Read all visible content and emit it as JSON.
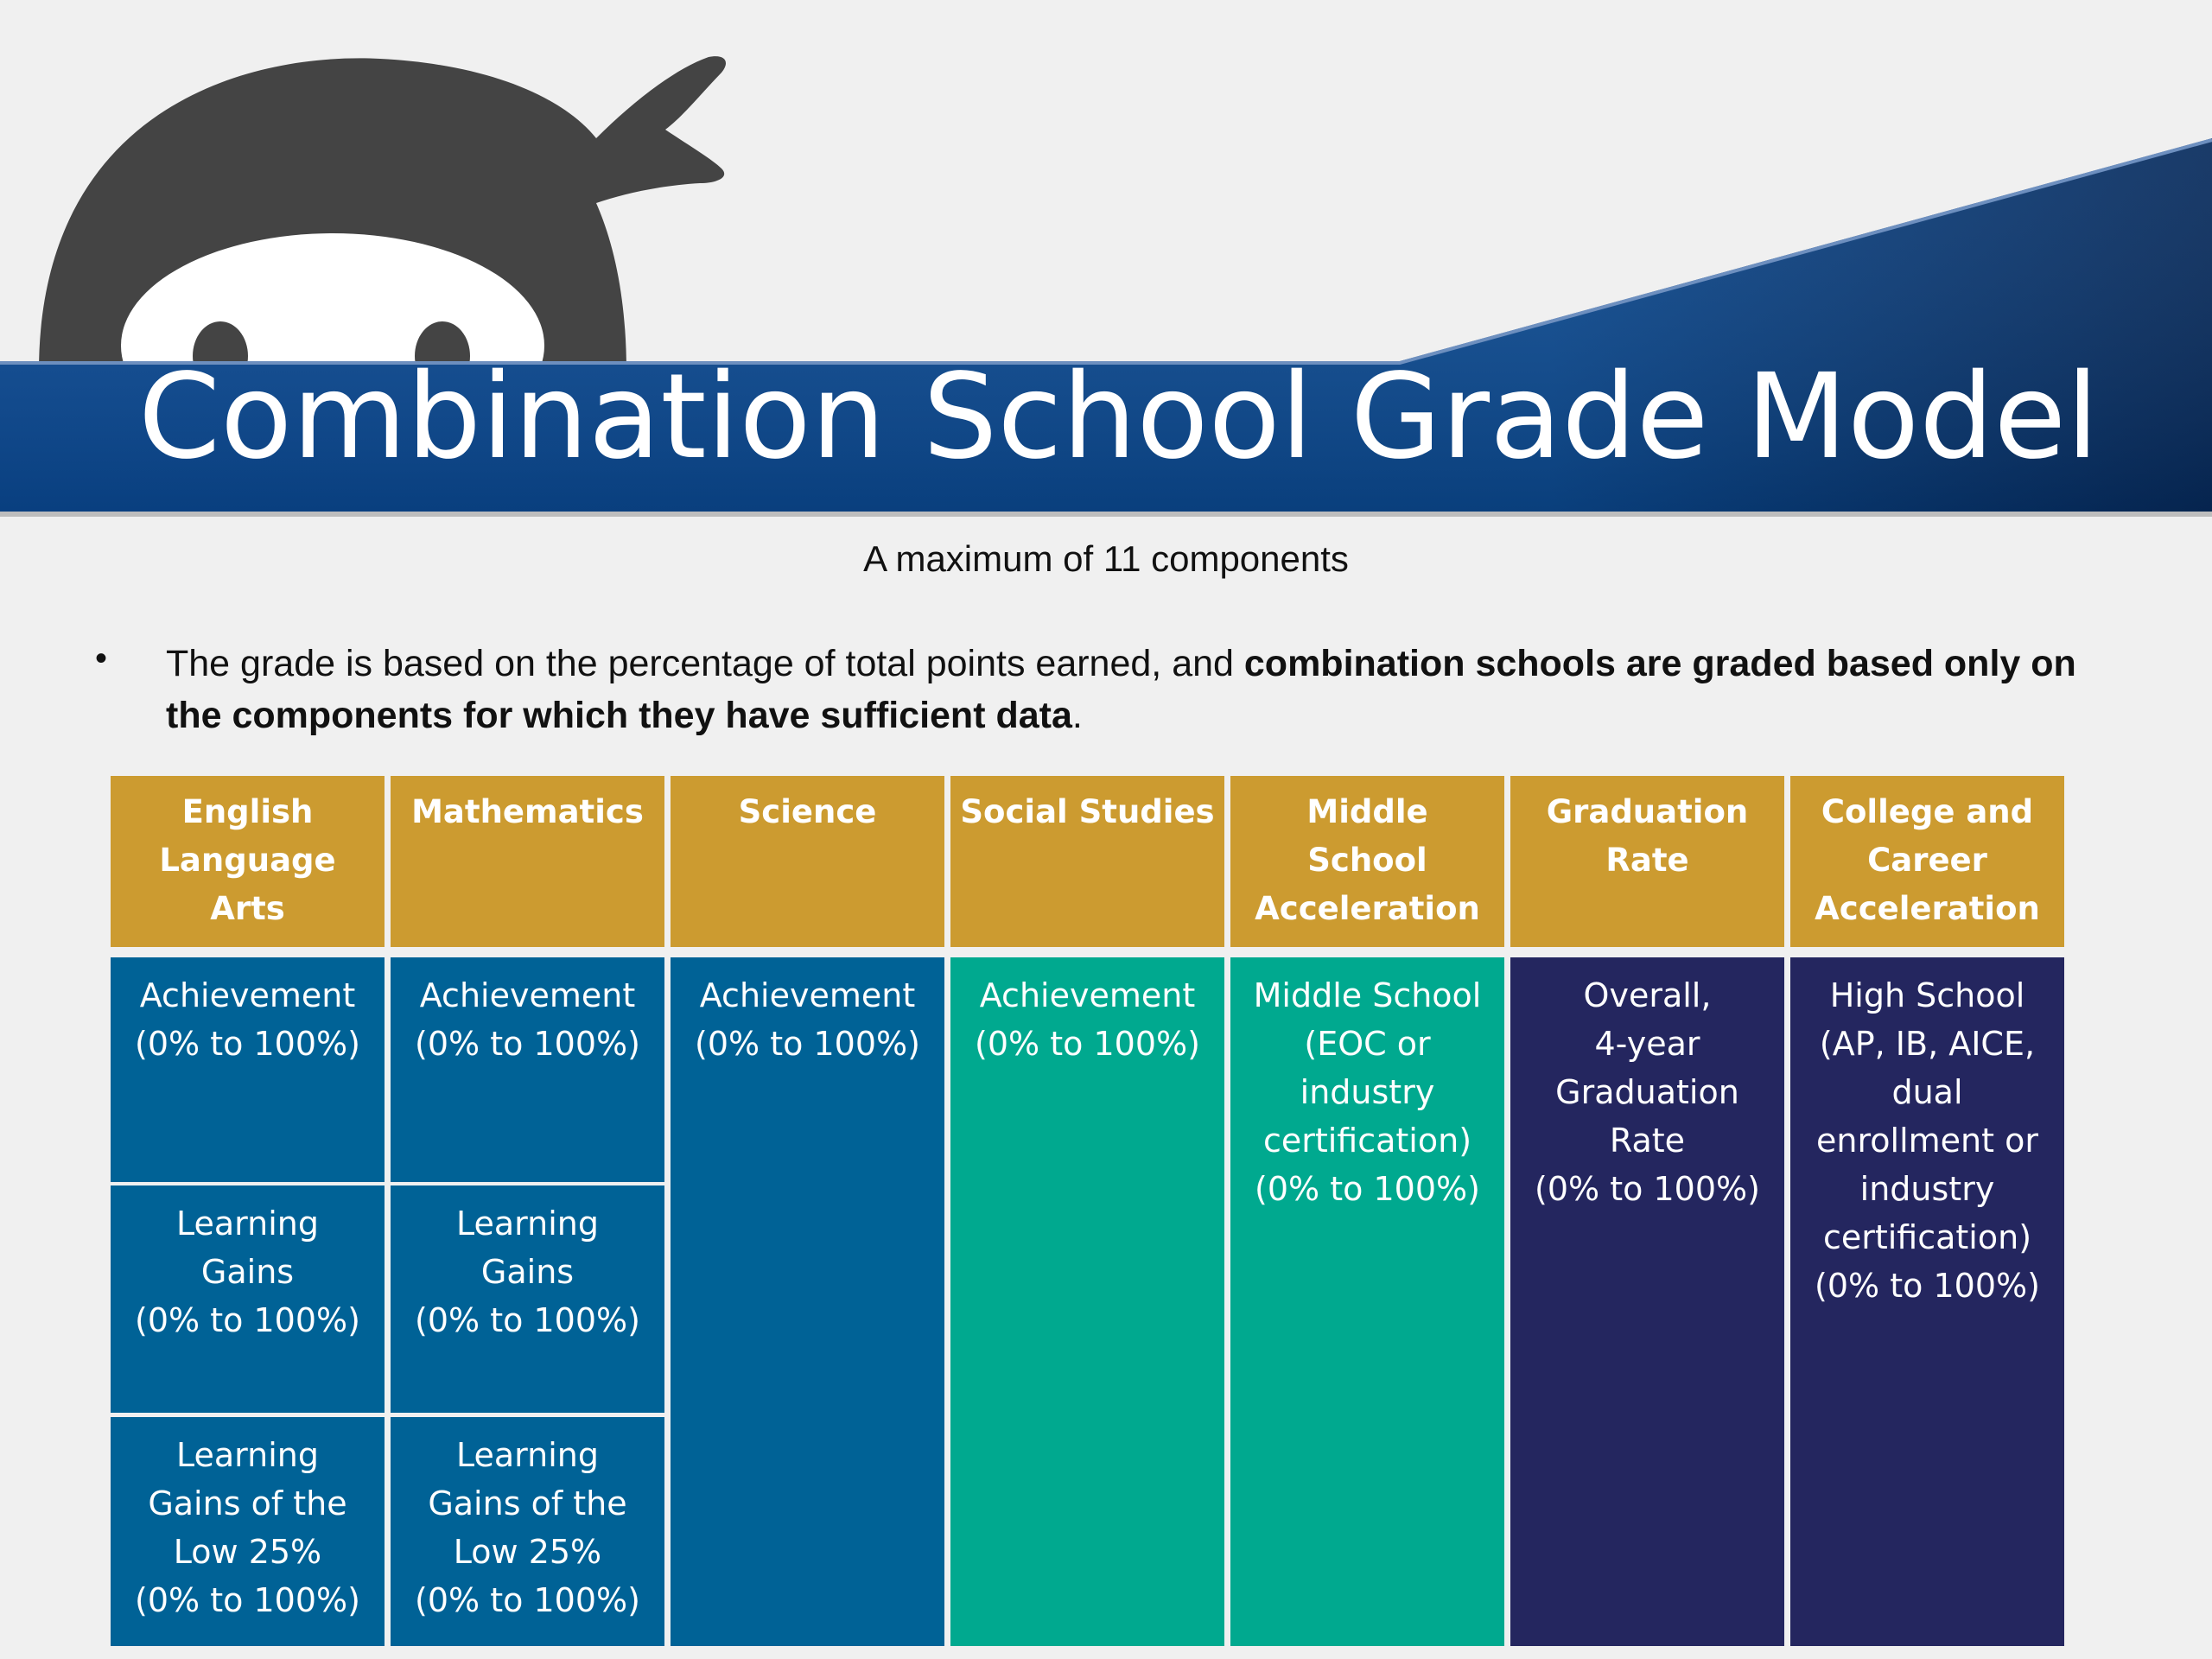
{
  "title": "Combination School Grade Model",
  "subtitle": "A maximum of 11 components",
  "bullet": {
    "marker": "•",
    "text_normal": "The grade is based on the percentage of total points earned, and ",
    "text_bold": "combination schools are graded based only on the components for which they have sufficient data",
    "text_end": "."
  },
  "colors": {
    "header_gold": "#cc9b30",
    "blue": "#006296",
    "teal": "#00a98f",
    "navy": "#24265f",
    "banner_blue": "#0a4a96",
    "mascot_gray": "#444444"
  },
  "table": {
    "headers": [
      "English\nLanguage\nArts",
      "Mathematics",
      "Science",
      "Social Studies",
      "Middle\nSchool\nAcceleration",
      "Graduation\nRate",
      "College and\nCareer\nAcceleration"
    ],
    "ela": [
      "Achievement\n(0% to 100%)",
      "Learning\nGains\n(0% to 100%)",
      "Learning\nGains of the\nLow 25%\n(0% to 100%)"
    ],
    "math": [
      "Achievement\n(0% to 100%)",
      "Learning\nGains\n(0% to 100%)",
      "Learning\nGains of the\nLow 25%\n(0% to 100%)"
    ],
    "science": "Achievement\n(0% to 100%)",
    "social_studies": "Achievement\n(0% to 100%)",
    "middle_school": "Middle School\n(EOC or\nindustry\ncertification)\n(0% to 100%)",
    "graduation": "Overall,\n4-year\nGraduation\nRate\n(0% to 100%)",
    "college_career": "High School\n(AP, IB, AICE,\ndual\nenrollment or\nindustry\ncertification)\n(0% to 100%)"
  }
}
